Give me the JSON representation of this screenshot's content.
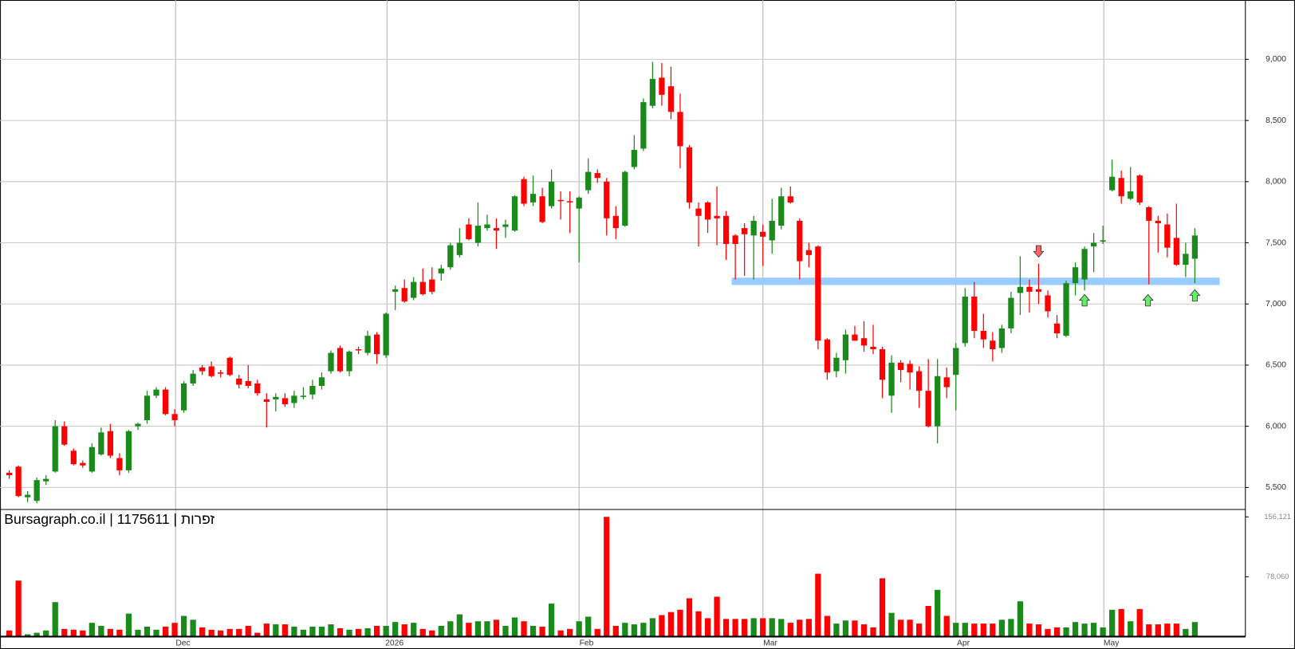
{
  "chart_data": {
    "type": "candlestick",
    "source": "Bursagraph.co.il | 1175611 | תורפז",
    "xlim": [
      -1,
      134.5
    ],
    "xticks": [
      {
        "value": 18.1,
        "label": "Dec"
      },
      {
        "value": 41.1,
        "label": "2026"
      },
      {
        "value": 62,
        "label": "Feb"
      },
      {
        "value": 82,
        "label": "Mar"
      },
      {
        "value": 103,
        "label": "Apr"
      },
      {
        "value": 119.1,
        "label": "May"
      }
    ],
    "ylim": [
      5320,
      9485
    ],
    "yticks": [
      {
        "value": 5500,
        "label": "5,500"
      },
      {
        "value": 6000,
        "label": "6,000"
      },
      {
        "value": 6500,
        "label": "6,500"
      },
      {
        "value": 7000,
        "label": "7,000"
      },
      {
        "value": 7500,
        "label": "7,500"
      },
      {
        "value": 8000,
        "label": "8,000"
      },
      {
        "value": 8500,
        "label": "8,500"
      },
      {
        "value": 9000,
        "label": "9,000"
      }
    ],
    "y2lim": [
      0,
      165800
    ],
    "y2ticks": [
      {
        "value": 78060,
        "label": "78,060"
      },
      {
        "value": 156121,
        "label": "156,121"
      }
    ],
    "grid": true,
    "up_color": "#1a8a1a",
    "down_color": "#ff0000",
    "open": [
      5620,
      5670,
      5420,
      5390,
      5550,
      5630,
      6000,
      5800,
      5700,
      5630,
      5770,
      5960,
      5740,
      5640,
      6000,
      6050,
      6250,
      6300,
      6100,
      6130,
      6350,
      6480,
      6490,
      6440,
      6560,
      6390,
      6370,
      6350,
      6220,
      6220,
      6230,
      6190,
      6240,
      6260,
      6330,
      6450,
      6640,
      6450,
      6630,
      6600,
      6750,
      6580,
      7100,
      7130,
      7050,
      7180,
      7200,
      7250,
      7300,
      7400,
      7650,
      7500,
      7620,
      7620,
      7630,
      7600,
      8020,
      7830,
      7880,
      7800,
      7850,
      7840,
      7780,
      7930,
      8070,
      8000,
      7720,
      7640,
      8120,
      8270,
      8620,
      8850,
      8780,
      8570,
      8280,
      7780,
      7830,
      7720,
      7720,
      7560,
      7620,
      7560,
      7590,
      7520,
      7640,
      7880,
      7680,
      7440,
      7470,
      6710,
      6450,
      6540,
      6750,
      6720,
      6650,
      6630,
      6250,
      6520,
      6510,
      6450,
      6290,
      6000,
      6400,
      6420,
      6680,
      7060,
      6780,
      6700,
      6640,
      6800,
      7090,
      7140,
      7120,
      7070,
      6840,
      6740,
      7170,
      7200,
      7470,
      7510,
      7930,
      8030,
      7860,
      8050,
      7790,
      7680,
      7650,
      7540,
      7320,
      7370
    ],
    "high": [
      5640,
      5680,
      5470,
      5580,
      5600,
      6050,
      6040,
      5820,
      5720,
      5860,
      5990,
      6020,
      5780,
      5970,
      6030,
      6290,
      6320,
      6320,
      6140,
      6370,
      6460,
      6500,
      6530,
      6460,
      6570,
      6420,
      6500,
      6380,
      6270,
      6270,
      6270,
      6290,
      6320,
      6380,
      6440,
      6620,
      6660,
      6620,
      6650,
      6780,
      6770,
      6930,
      7150,
      7200,
      7220,
      7290,
      7300,
      7320,
      7500,
      7620,
      7700,
      7830,
      7730,
      7700,
      7690,
      7890,
      8040,
      8050,
      7950,
      8100,
      7920,
      7920,
      7880,
      8190,
      8100,
      8030,
      7800,
      8090,
      8380,
      8680,
      8980,
      8970,
      8940,
      8720,
      8300,
      7830,
      7840,
      7960,
      7760,
      7570,
      7660,
      7720,
      7650,
      7860,
      7950,
      7960,
      7700,
      7500,
      7480,
      6720,
      6600,
      6790,
      6820,
      6860,
      6830,
      6650,
      6580,
      6540,
      6540,
      6490,
      6550,
      6550,
      6480,
      6680,
      7130,
      7180,
      6920,
      6770,
      6830,
      7100,
      7390,
      7200,
      7330,
      7110,
      6910,
      7190,
      7340,
      7470,
      7580,
      7640,
      8180,
      8090,
      8120,
      8060,
      7800,
      7720,
      7740,
      7820,
      7500,
      7620
    ],
    "low": [
      5570,
      5420,
      5380,
      5370,
      5520,
      5620,
      5840,
      5680,
      5660,
      5620,
      5760,
      5740,
      5600,
      5620,
      5970,
      6020,
      6230,
      6090,
      6000,
      6110,
      6330,
      6420,
      6400,
      6400,
      6410,
      6310,
      6310,
      6250,
      5990,
      6120,
      6160,
      6150,
      6220,
      6220,
      6300,
      6430,
      6440,
      6410,
      6590,
      6580,
      6510,
      6560,
      6950,
      7010,
      7030,
      7070,
      7080,
      7190,
      7280,
      7380,
      7520,
      7470,
      7600,
      7450,
      7540,
      7590,
      7800,
      7800,
      7660,
      7780,
      7690,
      7580,
      7340,
      7900,
      7990,
      7560,
      7530,
      7630,
      8100,
      8250,
      8600,
      8620,
      8510,
      8110,
      7780,
      7470,
      7580,
      7480,
      7360,
      7200,
      7230,
      7200,
      7310,
      7410,
      7610,
      7820,
      7200,
      7300,
      6630,
      6380,
      6400,
      6430,
      6700,
      6610,
      6590,
      6230,
      6110,
      6360,
      6300,
      6150,
      5990,
      5860,
      6230,
      6130,
      6650,
      6720,
      6640,
      6530,
      6600,
      6760,
      6910,
      6930,
      7000,
      6890,
      6720,
      6730,
      7070,
      7110,
      7260,
      7490,
      7920,
      7820,
      7850,
      7810,
      7160,
      7420,
      7380,
      7310,
      7220,
      7170
    ],
    "close": [
      5600,
      5430,
      5440,
      5560,
      5570,
      6000,
      5850,
      5690,
      5680,
      5830,
      5950,
      5760,
      5640,
      5960,
      6020,
      6250,
      6300,
      6100,
      6050,
      6350,
      6430,
      6450,
      6410,
      6430,
      6420,
      6340,
      6330,
      6270,
      6200,
      6240,
      6180,
      6250,
      6250,
      6330,
      6400,
      6600,
      6450,
      6610,
      6620,
      6740,
      6590,
      6920,
      7120,
      7020,
      7180,
      7080,
      7100,
      7290,
      7480,
      7500,
      7530,
      7640,
      7650,
      7600,
      7650,
      7880,
      7820,
      7900,
      7670,
      8000,
      7840,
      7830,
      7870,
      8080,
      8030,
      7700,
      7620,
      8080,
      8260,
      8650,
      8840,
      8710,
      8570,
      8290,
      7830,
      7720,
      7690,
      7700,
      7490,
      7490,
      7570,
      7680,
      7550,
      7680,
      7880,
      7830,
      7350,
      7400,
      6700,
      6440,
      6560,
      6750,
      6700,
      6660,
      6630,
      6380,
      6520,
      6460,
      6440,
      6290,
      6000,
      6410,
      6320,
      6640,
      7060,
      6780,
      6710,
      6630,
      6800,
      7050,
      7140,
      7100,
      7100,
      6940,
      6760,
      7170,
      7300,
      7450,
      7500,
      7520,
      8040,
      7880,
      7920,
      7830,
      7680,
      7660,
      7460,
      7320,
      7410,
      7560
    ],
    "volume": [
      8000,
      73000,
      3000,
      5000,
      8000,
      45000,
      10000,
      9000,
      8000,
      18000,
      14000,
      10000,
      9000,
      30000,
      9000,
      13000,
      9000,
      13000,
      18000,
      27000,
      22000,
      12000,
      9000,
      8000,
      10000,
      10000,
      14000,
      5000,
      17000,
      16000,
      16000,
      13000,
      9000,
      13000,
      13000,
      16000,
      11000,
      9000,
      10000,
      11000,
      14000,
      14000,
      19000,
      16000,
      18000,
      10000,
      8000,
      14000,
      20000,
      29000,
      18000,
      20000,
      20000,
      22000,
      14000,
      25000,
      20000,
      14000,
      13000,
      43000,
      8000,
      10000,
      20000,
      26000,
      10000,
      156121,
      14000,
      18000,
      16000,
      18000,
      24000,
      28000,
      32000,
      35000,
      50000,
      33000,
      24000,
      52000,
      23000,
      23000,
      23000,
      24000,
      24000,
      24000,
      23000,
      18000,
      22000,
      23000,
      82000,
      27000,
      17000,
      21000,
      21000,
      16000,
      12000,
      76000,
      31000,
      22000,
      22000,
      17000,
      40000,
      61000,
      27000,
      18000,
      18000,
      17000,
      17000,
      17000,
      22000,
      23000,
      46000,
      17000,
      16000,
      10000,
      12000,
      12000,
      19000,
      17000,
      18000,
      12000,
      35000,
      36000,
      20000,
      36000,
      16000,
      16000,
      17000,
      17000,
      10000,
      19000
    ],
    "support": {
      "value": 7185,
      "from": 78.6,
      "to": 131.7,
      "color": "#99ccff"
    },
    "arrows": [
      {
        "x": 112,
        "y": 7430,
        "dir": "down",
        "color": "#ff6666"
      },
      {
        "x": 117,
        "y": 7030,
        "dir": "up",
        "color": "#66ee66"
      },
      {
        "x": 123.9,
        "y": 7030,
        "dir": "up",
        "color": "#66ee66"
      },
      {
        "x": 129,
        "y": 7070,
        "dir": "up",
        "color": "#66ee66"
      }
    ]
  }
}
